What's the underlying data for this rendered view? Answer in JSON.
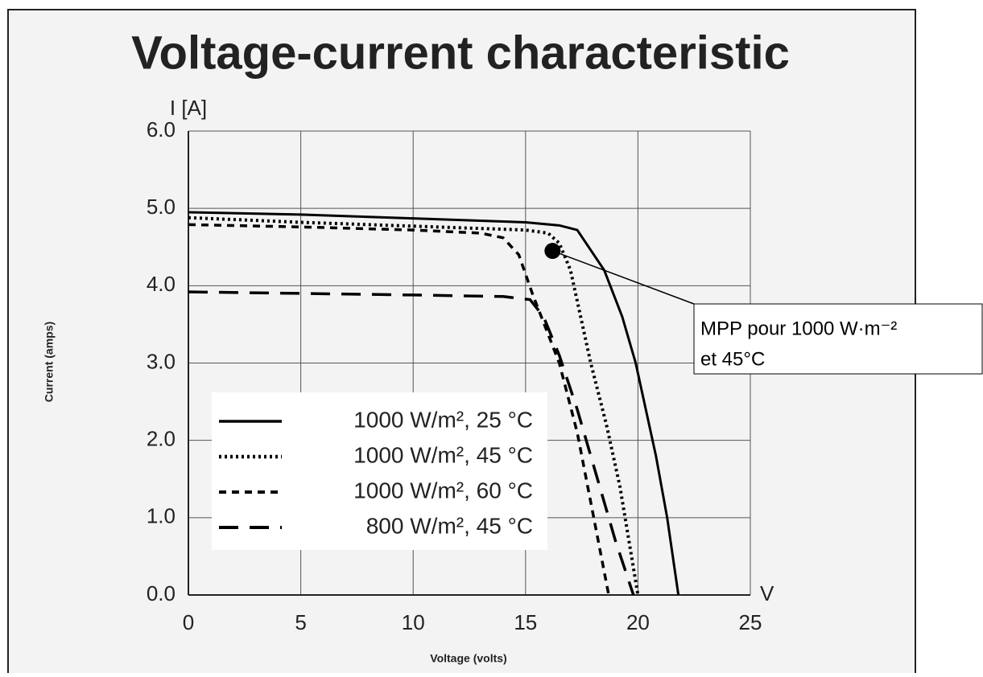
{
  "chart_data": {
    "type": "line",
    "title": "Voltage-current characteristic",
    "x_label": "Voltage (volts)",
    "y_label": "Current (amps)",
    "x_unit": "V",
    "y_unit": "I [A]",
    "xlim": [
      0,
      25
    ],
    "xticks": [
      0,
      5,
      10,
      15,
      20,
      25
    ],
    "ylim": [
      0,
      6
    ],
    "yticks": [
      {
        "value": 0,
        "label": "0.0"
      },
      {
        "value": 1,
        "label": "1.0"
      },
      {
        "value": 2,
        "label": "2.0"
      },
      {
        "value": 3,
        "label": "3.0"
      },
      {
        "value": 4,
        "label": "4.0"
      },
      {
        "value": 5,
        "label": "5.0"
      },
      {
        "value": 6,
        "label": "6.0"
      }
    ],
    "grid": true,
    "series": [
      {
        "name": "1000 W/m², 25 °C",
        "color": "#000000",
        "style": "solid",
        "x": [
          0,
          5,
          10,
          15,
          16.5,
          17.3,
          18.5,
          19.3,
          19.9,
          20.8,
          21.3,
          21.8
        ],
        "y": [
          4.95,
          4.92,
          4.87,
          4.82,
          4.78,
          4.72,
          4.2,
          3.6,
          3.0,
          1.8,
          1.0,
          0
        ]
      },
      {
        "name": "1000 W/m², 45 °C",
        "color": "#000000",
        "style": "dotted",
        "x": [
          0,
          5,
          10,
          15,
          16,
          16.5,
          17,
          17.9,
          18.6,
          19.2,
          19.6,
          20
        ],
        "y": [
          4.88,
          4.82,
          4.77,
          4.72,
          4.68,
          4.55,
          4.2,
          3.0,
          2.2,
          1.4,
          0.7,
          0
        ]
      },
      {
        "name": "1000 W/m², 60 °C",
        "color": "#000000",
        "style": "dashed",
        "x": [
          0,
          5,
          10,
          13,
          14,
          14.7,
          15.3,
          16.5,
          17.3,
          17.9,
          18.3,
          18.7
        ],
        "y": [
          4.79,
          4.76,
          4.72,
          4.68,
          4.62,
          4.4,
          3.9,
          3.0,
          2.1,
          1.2,
          0.6,
          0
        ]
      },
      {
        "name": "800 W/m², 45 °C",
        "color": "#000000",
        "style": "longdash",
        "x": [
          0,
          5,
          10,
          14,
          15.2,
          15.8,
          16.5,
          17.3,
          18.2,
          19,
          19.8
        ],
        "y": [
          3.92,
          3.9,
          3.88,
          3.86,
          3.82,
          3.6,
          3.1,
          2.4,
          1.5,
          0.7,
          0
        ]
      }
    ],
    "legend": "lower-left",
    "annotation": {
      "lines": [
        "MPP pour 1000 W·m⁻²",
        "et 45°C"
      ],
      "x": 16.2,
      "y": 4.45
    }
  }
}
